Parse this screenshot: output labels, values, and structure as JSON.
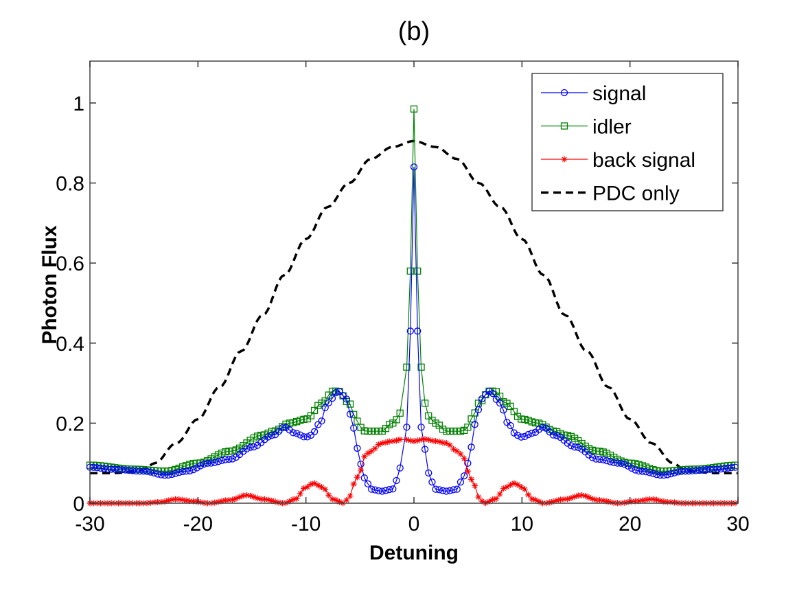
{
  "chart_data": {
    "type": "line",
    "title": "(b)",
    "xlabel": "Detuning",
    "ylabel": "Photon Flux",
    "xlim": [
      -30,
      30
    ],
    "ylim": [
      0,
      1.1
    ],
    "xticks": [
      -30,
      -20,
      -10,
      0,
      10,
      20,
      30
    ],
    "xtick_labels": [
      "-30",
      "-20",
      "-10",
      "0",
      "10",
      "20",
      "30"
    ],
    "yticks": [
      0,
      0.2,
      0.4,
      0.6,
      0.8,
      1
    ],
    "ytick_labels": [
      "0",
      "0.2",
      "0.4",
      "0.6",
      "0.8",
      "1"
    ],
    "grid": false,
    "legend_position": "top-right",
    "series": [
      {
        "name": "signal",
        "color": "#0000ff",
        "marker": "circle",
        "symmetric": true,
        "x": [
          0,
          0.33,
          0.67,
          1,
          1.5,
          2,
          3,
          4,
          4.5,
          5,
          5.3,
          5.7,
          6.2,
          7,
          8,
          8.7,
          9.5,
          10,
          11,
          12,
          13,
          15,
          17,
          19,
          21,
          23,
          25,
          28,
          30
        ],
        "y": [
          0.84,
          0.43,
          0.19,
          0.135,
          0.06,
          0.035,
          0.03,
          0.035,
          0.06,
          0.1,
          0.14,
          0.2,
          0.26,
          0.28,
          0.25,
          0.2,
          0.17,
          0.165,
          0.175,
          0.19,
          0.17,
          0.14,
          0.11,
          0.1,
          0.08,
          0.07,
          0.08,
          0.085,
          0.09
        ]
      },
      {
        "name": "idler",
        "color": "#008000",
        "marker": "square",
        "symmetric": true,
        "x": [
          0,
          0.33,
          0.67,
          1,
          1.5,
          2,
          3,
          3.5,
          4.5,
          5,
          5.5,
          6,
          7,
          7.5,
          8.5,
          10,
          11.5,
          13,
          14,
          17,
          20,
          23,
          26,
          30
        ],
        "y": [
          0.985,
          0.58,
          0.34,
          0.25,
          0.21,
          0.2,
          0.18,
          0.18,
          0.18,
          0.19,
          0.22,
          0.25,
          0.28,
          0.28,
          0.25,
          0.21,
          0.2,
          0.18,
          0.17,
          0.13,
          0.1,
          0.08,
          0.085,
          0.095
        ]
      },
      {
        "name": "back signal",
        "color": "#ff0000",
        "marker": "asterisk",
        "symmetric": true,
        "x": [
          0,
          1,
          2,
          3,
          4,
          4.5,
          5,
          5.5,
          6,
          6.5,
          7.5,
          8.5,
          9.3,
          10,
          11,
          12,
          14,
          15.5,
          17,
          19,
          20.5,
          22,
          23.5,
          25,
          30
        ],
        "y": [
          0.155,
          0.16,
          0.155,
          0.15,
          0.13,
          0.12,
          0.08,
          0.05,
          0.015,
          0.0,
          0.01,
          0.04,
          0.05,
          0.04,
          0.01,
          0.0,
          0.01,
          0.02,
          0.008,
          0.0,
          0.005,
          0.01,
          0.003,
          0.0,
          0.0
        ]
      },
      {
        "name": "PDC only",
        "color": "#000000",
        "marker": "none",
        "dashed": true,
        "symmetric": true,
        "x": [
          0,
          2,
          4,
          6,
          8,
          10,
          12,
          14,
          16,
          18,
          20,
          22,
          24,
          25,
          26,
          28,
          30
        ],
        "y": [
          0.905,
          0.89,
          0.86,
          0.8,
          0.74,
          0.66,
          0.57,
          0.47,
          0.38,
          0.29,
          0.21,
          0.15,
          0.1,
          0.085,
          0.078,
          0.075,
          0.075
        ]
      }
    ]
  }
}
